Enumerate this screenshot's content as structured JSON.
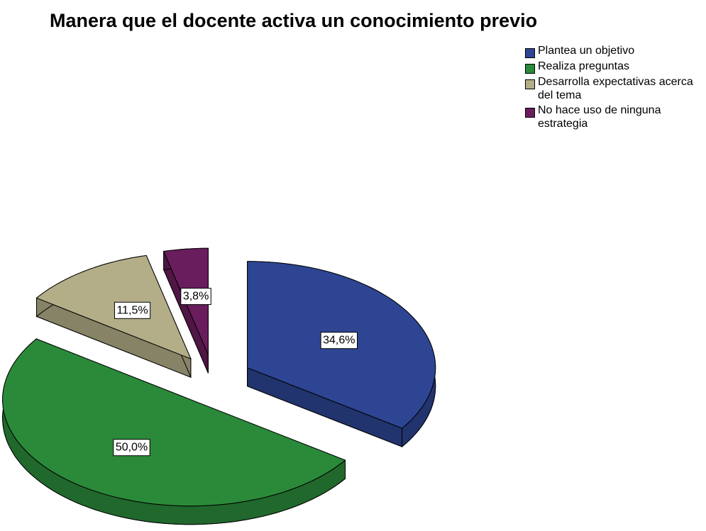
{
  "chart_data": {
    "type": "pie",
    "title": "Manera que el docente activa un conocimiento previo",
    "categories": [
      "Plantea un objetivo",
      "Realiza preguntas",
      "Desarrolla expectativas acerca del tema",
      "No hace uso de ninguna estrategia"
    ],
    "values": [
      34.6,
      50.0,
      11.5,
      3.8
    ],
    "value_labels": [
      "34,6%",
      "50,0%",
      "11,5%",
      "3,8%"
    ],
    "colors": [
      "#2d4593",
      "#2a8a3a",
      "#b3ae88",
      "#6a1d5c"
    ],
    "legend": "top-right"
  }
}
